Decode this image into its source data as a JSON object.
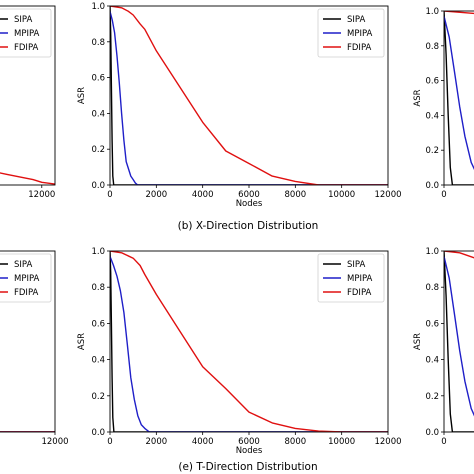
{
  "captions": {
    "top": "(b) X-Direction Distribution",
    "bottom": "(e) T-Direction Distribution"
  },
  "colors": {
    "SIPA": "#000000",
    "MPIPA": "#1f1fc8",
    "FDIPA": "#e01010"
  },
  "chart_data": [
    {
      "id": "left-top",
      "type": "line",
      "xlim": [
        0,
        13500
      ],
      "ylim": [
        0,
        1.0
      ],
      "xticks": [
        12000
      ],
      "yticks": [],
      "legend_position": "top-right",
      "series": [
        {
          "name": "SIPA",
          "x": [],
          "y": []
        },
        {
          "name": "MPIPA",
          "x": [],
          "y": []
        },
        {
          "name": "FDIPA",
          "x": [
            7000,
            8000,
            9000,
            10000,
            11000,
            12000,
            13500
          ],
          "y": [
            0.07,
            0.06,
            0.05,
            0.04,
            0.03,
            0.015,
            0.005
          ]
        }
      ]
    },
    {
      "id": "b",
      "type": "line",
      "xlabel": "Nodes",
      "ylabel": "ASR",
      "xlim": [
        0,
        12000
      ],
      "ylim": [
        0,
        1.0
      ],
      "xticks": [
        0,
        2000,
        4000,
        6000,
        8000,
        10000,
        12000
      ],
      "yticks": [
        0.0,
        0.2,
        0.4,
        0.6,
        0.8,
        1.0
      ],
      "legend_position": "top-right",
      "series": [
        {
          "name": "SIPA",
          "x": [
            0,
            30,
            60,
            90,
            120,
            160,
            12000
          ],
          "y": [
            1.0,
            0.85,
            0.55,
            0.25,
            0.05,
            0.0,
            0.0
          ]
        },
        {
          "name": "MPIPA",
          "x": [
            0,
            100,
            200,
            300,
            400,
            500,
            600,
            700,
            800,
            900,
            1000,
            1100,
            1200,
            12000
          ],
          "y": [
            0.97,
            0.92,
            0.85,
            0.72,
            0.57,
            0.4,
            0.25,
            0.13,
            0.09,
            0.05,
            0.03,
            0.01,
            0.0,
            0.0
          ]
        },
        {
          "name": "FDIPA",
          "x": [
            0,
            500,
            800,
            1000,
            1300,
            1500,
            2000,
            3000,
            4000,
            5000,
            6000,
            7000,
            8000,
            9000,
            12000
          ],
          "y": [
            1.0,
            0.99,
            0.97,
            0.95,
            0.9,
            0.87,
            0.75,
            0.55,
            0.35,
            0.19,
            0.12,
            0.05,
            0.02,
            0.0,
            0.0
          ]
        }
      ]
    },
    {
      "id": "right-top",
      "type": "line",
      "ylabel": "ASR",
      "xlim": [
        0,
        1300
      ],
      "ylim": [
        0,
        1.0
      ],
      "xticks": [
        0
      ],
      "yticks": [
        0.0,
        0.2,
        0.4,
        0.6,
        0.8,
        1.0
      ],
      "series": [
        {
          "name": "SIPA",
          "x": [
            0,
            20,
            40,
            60,
            80,
            1300
          ],
          "y": [
            1.0,
            0.75,
            0.4,
            0.1,
            0.0,
            0.0
          ]
        },
        {
          "name": "MPIPA",
          "x": [
            0,
            50,
            100,
            150,
            200,
            260,
            330,
            380,
            1300
          ],
          "y": [
            0.97,
            0.85,
            0.65,
            0.45,
            0.28,
            0.13,
            0.04,
            0.0,
            0.0
          ]
        },
        {
          "name": "FDIPA",
          "x": [
            0,
            200,
            400,
            600,
            800,
            1000,
            1300
          ],
          "y": [
            1.0,
            0.99,
            0.98,
            0.96,
            0.95,
            0.94,
            0.93
          ]
        }
      ]
    },
    {
      "id": "left-bottom",
      "type": "line",
      "xlim": [
        0,
        12000
      ],
      "ylim": [
        0,
        1.0
      ],
      "xticks": [
        12000
      ],
      "yticks": [],
      "legend_position": "top-right",
      "series": [
        {
          "name": "SIPA",
          "x": [
            0,
            12000
          ],
          "y": [
            0.0,
            0.0
          ]
        },
        {
          "name": "MPIPA",
          "x": [
            0,
            12000
          ],
          "y": [
            0.0,
            0.0
          ]
        },
        {
          "name": "FDIPA",
          "x": [
            0,
            12000
          ],
          "y": [
            0.0,
            0.0
          ]
        }
      ]
    },
    {
      "id": "e",
      "type": "line",
      "xlabel": "Nodes",
      "ylabel": "ASR",
      "xlim": [
        0,
        12000
      ],
      "ylim": [
        0,
        1.0
      ],
      "xticks": [
        0,
        2000,
        4000,
        6000,
        8000,
        10000,
        12000
      ],
      "yticks": [
        0.0,
        0.2,
        0.4,
        0.6,
        0.8,
        1.0
      ],
      "legend_position": "top-right",
      "series": [
        {
          "name": "SIPA",
          "x": [
            0,
            30,
            60,
            90,
            120,
            170,
            12000
          ],
          "y": [
            1.0,
            0.88,
            0.6,
            0.3,
            0.08,
            0.0,
            0.0
          ]
        },
        {
          "name": "MPIPA",
          "x": [
            0,
            150,
            300,
            450,
            600,
            750,
            900,
            1050,
            1200,
            1350,
            1500,
            1700,
            12000
          ],
          "y": [
            0.97,
            0.92,
            0.86,
            0.78,
            0.66,
            0.48,
            0.3,
            0.18,
            0.09,
            0.04,
            0.02,
            0.0,
            0.0
          ]
        },
        {
          "name": "FDIPA",
          "x": [
            0,
            500,
            1000,
            1300,
            1500,
            2000,
            3000,
            4000,
            5000,
            6000,
            7000,
            8000,
            9000,
            10000,
            12000
          ],
          "y": [
            1.0,
            0.99,
            0.96,
            0.92,
            0.87,
            0.76,
            0.56,
            0.36,
            0.24,
            0.11,
            0.05,
            0.02,
            0.005,
            0.0,
            0.0
          ]
        }
      ]
    },
    {
      "id": "right-bottom",
      "type": "line",
      "ylabel": "ASR",
      "xlim": [
        0,
        1300
      ],
      "ylim": [
        0,
        1.0
      ],
      "xticks": [
        0
      ],
      "yticks": [
        0.0,
        0.2,
        0.4,
        0.6,
        0.8,
        1.0
      ],
      "series": [
        {
          "name": "SIPA",
          "x": [
            0,
            20,
            40,
            60,
            80,
            1300
          ],
          "y": [
            1.0,
            0.75,
            0.4,
            0.1,
            0.0,
            0.0
          ]
        },
        {
          "name": "MPIPA",
          "x": [
            0,
            50,
            100,
            150,
            200,
            260,
            330,
            380,
            1300
          ],
          "y": [
            0.97,
            0.85,
            0.65,
            0.45,
            0.28,
            0.13,
            0.04,
            0.0,
            0.0
          ]
        },
        {
          "name": "FDIPA",
          "x": [
            0,
            150,
            300,
            450,
            600,
            750,
            900,
            1050,
            1300
          ],
          "y": [
            1.0,
            0.99,
            0.96,
            0.94,
            0.92,
            0.86,
            0.82,
            0.78,
            0.76
          ]
        }
      ]
    }
  ]
}
